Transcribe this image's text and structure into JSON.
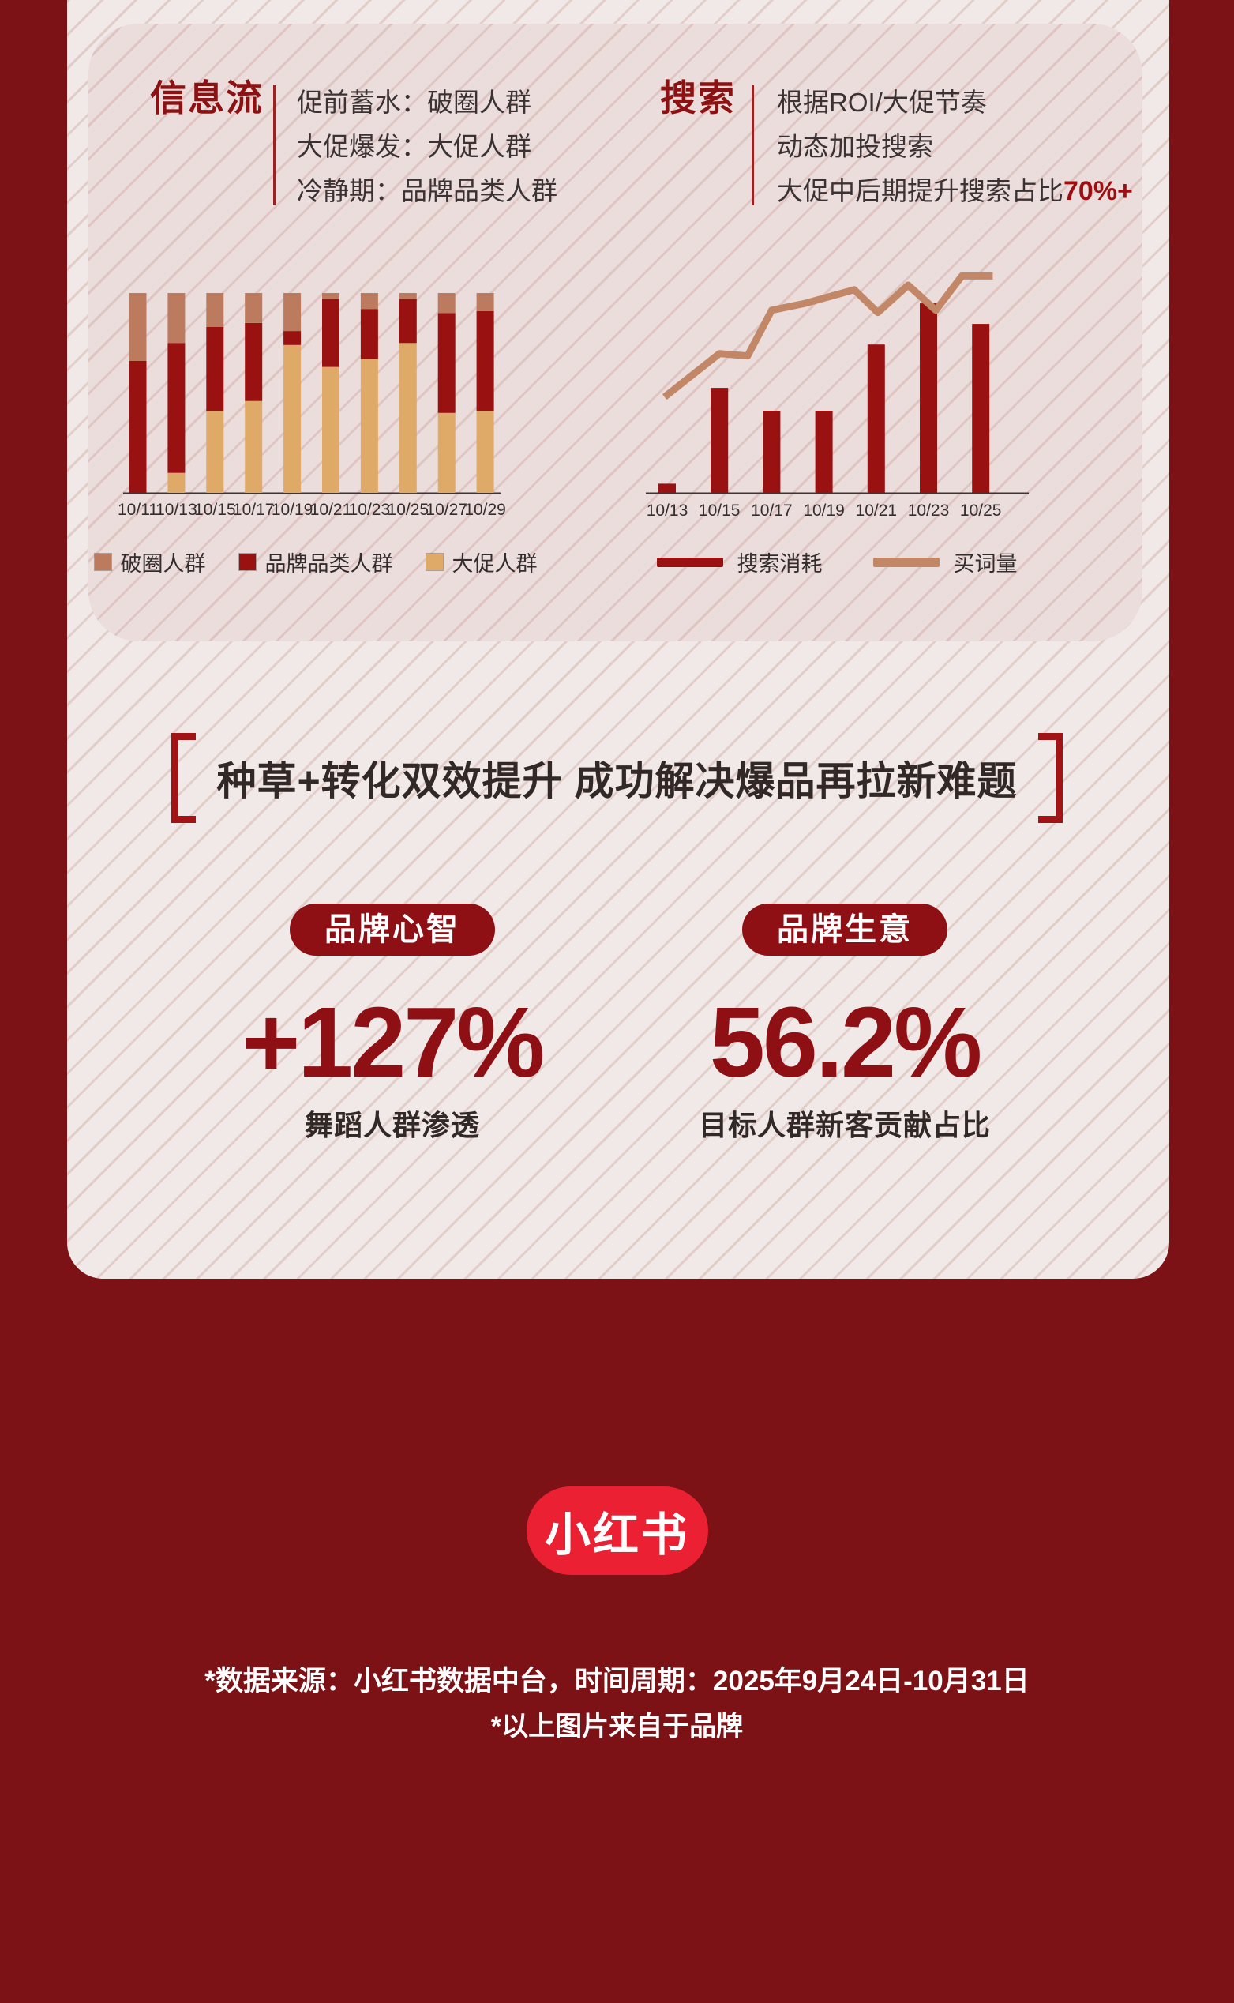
{
  "colors": {
    "page_bg": "#7D1216",
    "panel_bg": "#F0E9E7",
    "card_bg": "#EBDDDC",
    "heading_red": "#8C1113",
    "divider_red": "#9E2020",
    "text_dark": "#3A3233",
    "headline_dark": "#322927",
    "bracket_red": "#A21316",
    "highlight_red": "#9C0F12",
    "pill_red": "#8E1014",
    "logo_red": "#EB2133",
    "bar_dark_red": "#9A1111",
    "bar_tan": "#DFA967",
    "bar_brown": "#BC7B5F",
    "line_brown": "#C28767"
  },
  "info_section": {
    "title": "信息流",
    "lines": [
      "促前蓄水：破圈人群",
      "大促爆发：大促人群",
      "冷静期：品牌品类人群"
    ]
  },
  "search_section": {
    "title": "搜索",
    "lines": [
      "根据ROI/大促节奏",
      "动态加投搜索"
    ],
    "line3_prefix": "大促中后期提升搜索占比",
    "line3_highlight": "70%+"
  },
  "chart_data": [
    {
      "type": "bar",
      "stacked": true,
      "unit": "share_percent",
      "title": "",
      "xlabel": "",
      "ylabel": "",
      "ylim": [
        0,
        100
      ],
      "grid": false,
      "legend_position": "bottom",
      "categories": [
        "10/11",
        "10/13",
        "10/15",
        "10/17",
        "10/19",
        "10/21",
        "10/23",
        "10/25",
        "10/27",
        "10/29"
      ],
      "series": [
        {
          "name": "大促人群",
          "color": "#DFA967",
          "values": [
            0,
            10,
            41,
            46,
            74,
            63,
            67,
            75,
            40,
            41
          ]
        },
        {
          "name": "品牌品类人群",
          "color": "#9A1111",
          "values": [
            66,
            65,
            42,
            39,
            7,
            34,
            25,
            22,
            50,
            50
          ]
        },
        {
          "name": "破圈人群",
          "color": "#BC7B5F",
          "values": [
            34,
            25,
            17,
            15,
            19,
            3,
            8,
            3,
            10,
            9
          ]
        }
      ],
      "legend_order": [
        "破圈人群",
        "品牌品类人群",
        "大促人群"
      ]
    },
    {
      "type": "bar+line",
      "unit": "relative_percent",
      "title": "",
      "xlabel": "",
      "ylabel": "",
      "ylim": [
        0,
        100
      ],
      "grid": false,
      "legend_position": "bottom",
      "categories": [
        "10/13",
        "10/15",
        "10/17",
        "10/19",
        "10/21",
        "10/23",
        "10/25"
      ],
      "bar_series": {
        "name": "搜索消耗",
        "color": "#9A1111",
        "values": [
          4,
          46,
          36,
          36,
          65,
          83,
          74
        ]
      },
      "line_series": {
        "name": "买词量",
        "color": "#C28767",
        "points": [
          {
            "x": -0.05,
            "y": 42
          },
          {
            "x": 1.0,
            "y": 61
          },
          {
            "x": 1.54,
            "y": 60
          },
          {
            "x": 2.0,
            "y": 80
          },
          {
            "x": 2.64,
            "y": 83
          },
          {
            "x": 3.58,
            "y": 89
          },
          {
            "x": 4.03,
            "y": 79
          },
          {
            "x": 4.61,
            "y": 91
          },
          {
            "x": 5.14,
            "y": 80
          },
          {
            "x": 5.64,
            "y": 95
          },
          {
            "x": 6.23,
            "y": 95
          }
        ]
      }
    }
  ],
  "headline": "种草+转化双效提升 成功解决爆品再拉新难题",
  "stats": [
    {
      "pill": "品牌心智",
      "value": "+127%",
      "label": "舞蹈人群渗透"
    },
    {
      "pill": "品牌生意",
      "value": "56.2%",
      "label": "目标人群新客贡献占比"
    }
  ],
  "logo_text": "小红书",
  "footer": [
    "*数据来源：小红书数据中台，时间周期：2025年9月24日-10月31日",
    "*以上图片来自于品牌"
  ]
}
